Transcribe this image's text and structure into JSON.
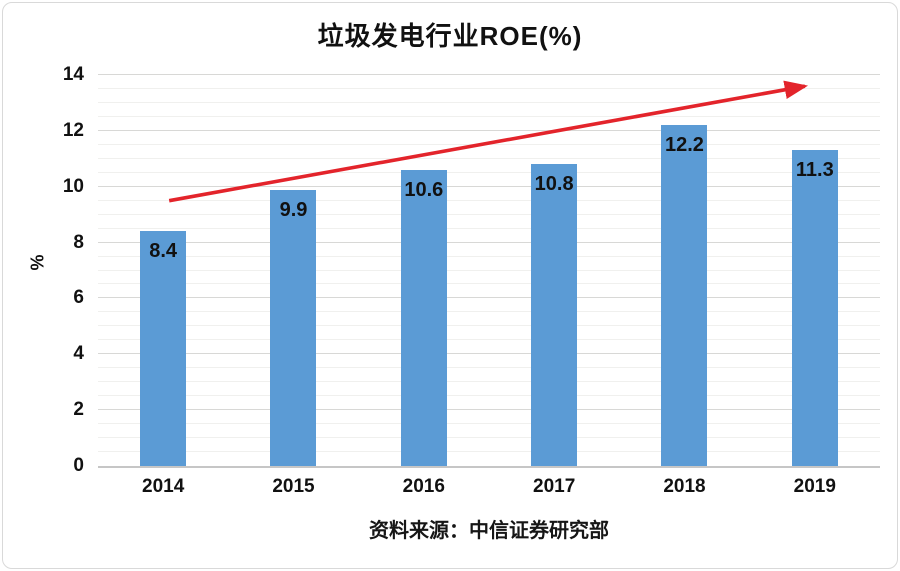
{
  "chart_data": {
    "type": "bar",
    "title": "垃圾发电行业ROE(%)",
    "xlabel": "",
    "ylabel": "%",
    "categories": [
      "2014",
      "2015",
      "2016",
      "2017",
      "2018",
      "2019"
    ],
    "values": [
      8.4,
      9.9,
      10.6,
      10.8,
      12.2,
      11.3
    ],
    "value_labels": [
      "8.4",
      "9.9",
      "10.6",
      "10.8",
      "12.2",
      "11.3"
    ],
    "ylim": [
      0,
      14
    ],
    "yticks": [
      0,
      2,
      4,
      6,
      8,
      10,
      12,
      14
    ],
    "minor_grid_step": 0.5,
    "grid": "on",
    "legend": "none",
    "bar_color": "#5B9BD5",
    "text_color": "#111111",
    "annotation": {
      "type": "trend-arrow",
      "color": "#E3242B",
      "from": {
        "category": "2014",
        "value": 9.5
      },
      "to": {
        "category": "2019",
        "value": 13.6
      }
    }
  },
  "caption": {
    "source": "资料来源：中信证券研究部"
  }
}
